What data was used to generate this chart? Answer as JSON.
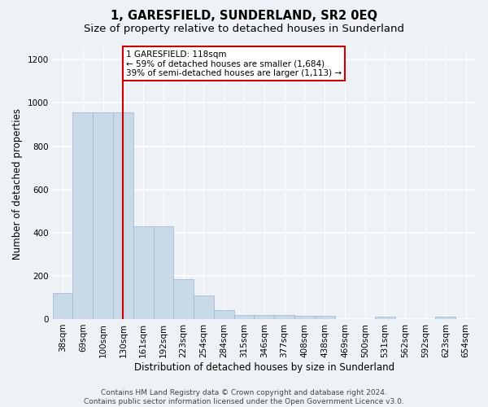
{
  "title": "1, GARESFIELD, SUNDERLAND, SR2 0EQ",
  "subtitle": "Size of property relative to detached houses in Sunderland",
  "xlabel": "Distribution of detached houses by size in Sunderland",
  "ylabel": "Number of detached properties",
  "footer_line1": "Contains HM Land Registry data © Crown copyright and database right 2024.",
  "footer_line2": "Contains public sector information licensed under the Open Government Licence v3.0.",
  "categories": [
    "38sqm",
    "69sqm",
    "100sqm",
    "130sqm",
    "161sqm",
    "192sqm",
    "223sqm",
    "254sqm",
    "284sqm",
    "315sqm",
    "346sqm",
    "377sqm",
    "408sqm",
    "438sqm",
    "469sqm",
    "500sqm",
    "531sqm",
    "562sqm",
    "592sqm",
    "623sqm",
    "654sqm"
  ],
  "bar_values": [
    120,
    955,
    955,
    955,
    428,
    428,
    185,
    110,
    42,
    18,
    18,
    18,
    14,
    14,
    0,
    0,
    10,
    0,
    0,
    10,
    0
  ],
  "bar_color": "#c9d9e8",
  "bar_edge_color": "#9ab5cc",
  "highlight_bar_index": 3,
  "highlight_color": "#cc0000",
  "annotation_text": "1 GARESFIELD: 118sqm\n← 59% of detached houses are smaller (1,684)\n39% of semi-detached houses are larger (1,113) →",
  "annotation_box_facecolor": "#ffffff",
  "annotation_border_color": "#cc0000",
  "ylim": [
    0,
    1250
  ],
  "yticks": [
    0,
    200,
    400,
    600,
    800,
    1000,
    1200
  ],
  "background_color": "#eef2f7",
  "grid_color": "#ffffff",
  "title_fontsize": 10.5,
  "subtitle_fontsize": 9.5,
  "axis_label_fontsize": 8.5,
  "tick_fontsize": 7.5,
  "footer_fontsize": 6.5,
  "annotation_fontsize": 7.5
}
